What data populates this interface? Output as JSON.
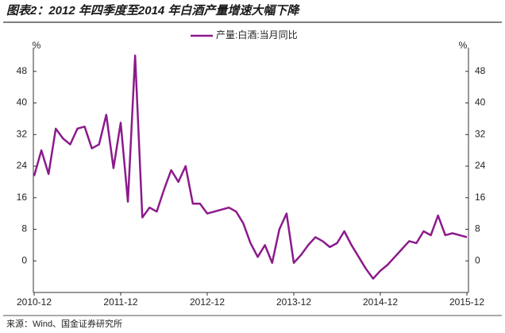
{
  "chart_data": {
    "type": "line",
    "title": "图表2：2012 年四季度至2014 年白酒产量增速大幅下降",
    "source": "来源：Wind、国金证券研究所",
    "ylabel": "%",
    "y2label": "%",
    "categories": [
      "2010-12",
      null,
      null,
      null,
      null,
      null,
      null,
      null,
      null,
      null,
      null,
      null,
      "2011-12",
      null,
      null,
      null,
      null,
      null,
      null,
      null,
      null,
      null,
      null,
      null,
      "2012-12",
      null,
      null,
      null,
      null,
      null,
      null,
      null,
      null,
      null,
      null,
      null,
      "2013-12",
      null,
      null,
      null,
      null,
      null,
      null,
      null,
      null,
      null,
      null,
      null,
      "2014-12",
      null,
      null,
      null,
      null,
      null,
      null,
      null,
      null,
      null,
      null,
      null,
      "2015-12"
    ],
    "series": [
      {
        "name": "产量:白酒:当月同比",
        "color": "#8c1a8c",
        "values": [
          21.5,
          28,
          22,
          33.5,
          31,
          29.5,
          33.5,
          34,
          28.5,
          29.5,
          37,
          23.5,
          35,
          15,
          52,
          11,
          13.5,
          12.5,
          18,
          23,
          20,
          24,
          14.5,
          14.5,
          12,
          12.5,
          13,
          13.5,
          12.5,
          9.5,
          4.5,
          1,
          4,
          -0.5,
          8,
          12,
          -0.5,
          1.5,
          4,
          6,
          5,
          3.5,
          4.5,
          7.5,
          4,
          1,
          -2,
          -4.5,
          -2.5,
          -1,
          1,
          3,
          5,
          4.5,
          7.5,
          6.5,
          11.5,
          6.5,
          7,
          6.5,
          6
        ]
      }
    ],
    "ylim": [
      -8,
      54
    ],
    "yticks": [
      0,
      8,
      16,
      24,
      32,
      40,
      48
    ],
    "y2lim": [
      -8,
      54
    ],
    "y2ticks": [
      0,
      8,
      16,
      24,
      32,
      40,
      48
    ],
    "grid": false,
    "legend": "top"
  }
}
